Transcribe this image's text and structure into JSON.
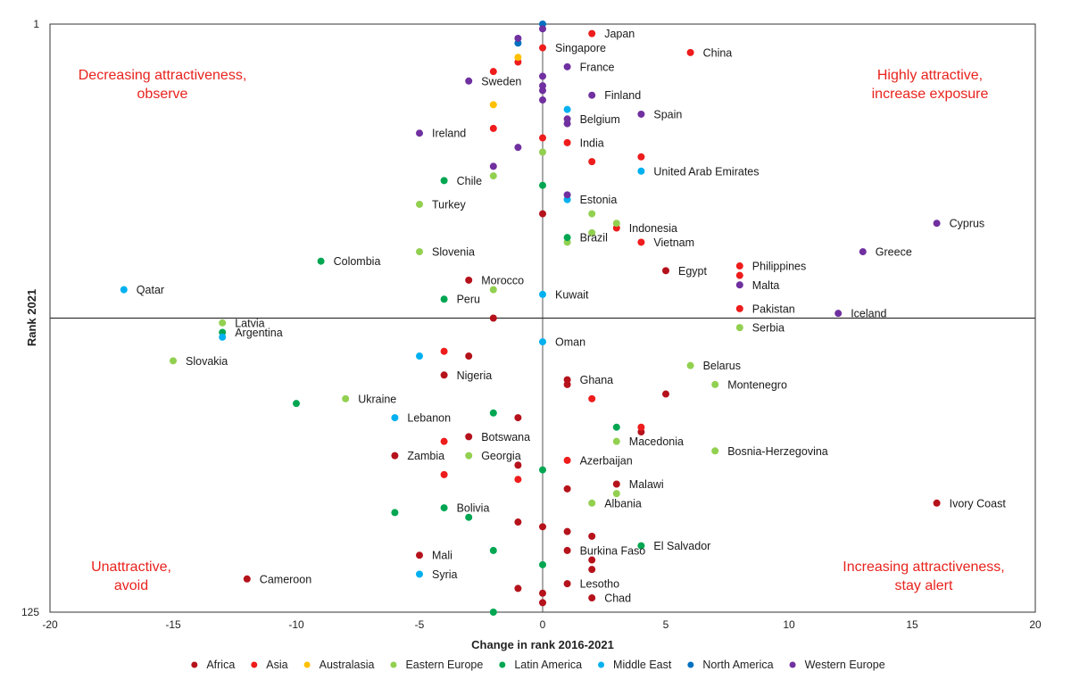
{
  "chart_data": {
    "type": "scatter",
    "xlabel": "Change in rank 2016-2021",
    "ylabel": "Rank 2021",
    "xlim": [
      -20,
      20
    ],
    "ylim": [
      1,
      125
    ],
    "y_reversed": true,
    "x_ticks": [
      -20,
      -15,
      -10,
      -5,
      0,
      5,
      10,
      15,
      20
    ],
    "y_ticks": [
      1,
      125
    ],
    "x_tick_labels": [
      "-20",
      "-15",
      "-10",
      "-5",
      "0",
      "5",
      "10",
      "15",
      "20"
    ],
    "y_tick_labels": [
      "1",
      "125"
    ],
    "reference_lines": {
      "x": 0,
      "y": 63
    },
    "grid": false,
    "legend_position": "bottom",
    "quadrant_labels": [
      {
        "lines": [
          "Decreasing attractiveness,",
          "observe"
        ],
        "position": "top-left"
      },
      {
        "lines": [
          "Highly attractive,",
          "increase exposure"
        ],
        "position": "top-right"
      },
      {
        "lines": [
          "Unattractive,",
          "avoid"
        ],
        "position": "bottom-left"
      },
      {
        "lines": [
          "Increasing attractiveness,",
          "stay alert"
        ],
        "position": "bottom-right"
      }
    ],
    "series": [
      {
        "name": "Africa",
        "color": "#b5121b",
        "points": [
          {
            "x": 0,
            "y": 41,
            "label": ""
          },
          {
            "x": -3,
            "y": 55,
            "label": "Morocco"
          },
          {
            "x": 5,
            "y": 53,
            "label": "Egypt"
          },
          {
            "x": -2,
            "y": 63,
            "label": ""
          },
          {
            "x": -3,
            "y": 71,
            "label": ""
          },
          {
            "x": -4,
            "y": 75,
            "label": "Nigeria"
          },
          {
            "x": 1,
            "y": 76,
            "label": "Ghana"
          },
          {
            "x": 1,
            "y": 77,
            "label": ""
          },
          {
            "x": 5,
            "y": 79,
            "label": ""
          },
          {
            "x": -1,
            "y": 84,
            "label": ""
          },
          {
            "x": 4,
            "y": 87,
            "label": ""
          },
          {
            "x": -3,
            "y": 88,
            "label": "Botswana"
          },
          {
            "x": -6,
            "y": 92,
            "label": "Zambia"
          },
          {
            "x": -1,
            "y": 94,
            "label": ""
          },
          {
            "x": 3,
            "y": 98,
            "label": "Malawi"
          },
          {
            "x": 1,
            "y": 99,
            "label": ""
          },
          {
            "x": 16,
            "y": 102,
            "label": "Ivory Coast"
          },
          {
            "x": -1,
            "y": 106,
            "label": ""
          },
          {
            "x": 0,
            "y": 107,
            "label": ""
          },
          {
            "x": 1,
            "y": 108,
            "label": ""
          },
          {
            "x": 2,
            "y": 109,
            "label": ""
          },
          {
            "x": 1,
            "y": 112,
            "label": "Burkina Faso"
          },
          {
            "x": -5,
            "y": 113,
            "label": "Mali"
          },
          {
            "x": 2,
            "y": 114,
            "label": ""
          },
          {
            "x": 2,
            "y": 116,
            "label": ""
          },
          {
            "x": -12,
            "y": 118,
            "label": "Cameroon"
          },
          {
            "x": 1,
            "y": 119,
            "label": "Lesotho"
          },
          {
            "x": -1,
            "y": 120,
            "label": ""
          },
          {
            "x": 0,
            "y": 121,
            "label": ""
          },
          {
            "x": 2,
            "y": 122,
            "label": "Chad"
          },
          {
            "x": 0,
            "y": 123,
            "label": ""
          }
        ]
      },
      {
        "name": "Asia",
        "color": "#ee1c1c",
        "points": [
          {
            "x": 2,
            "y": 3,
            "label": "Japan"
          },
          {
            "x": 0,
            "y": 6,
            "label": "Singapore"
          },
          {
            "x": 6,
            "y": 7,
            "label": "China"
          },
          {
            "x": -1,
            "y": 9,
            "label": ""
          },
          {
            "x": -2,
            "y": 11,
            "label": ""
          },
          {
            "x": -2,
            "y": 23,
            "label": ""
          },
          {
            "x": 0,
            "y": 25,
            "label": ""
          },
          {
            "x": 1,
            "y": 26,
            "label": "India"
          },
          {
            "x": 4,
            "y": 29,
            "label": ""
          },
          {
            "x": 2,
            "y": 30,
            "label": ""
          },
          {
            "x": 3,
            "y": 44,
            "label": "Indonesia"
          },
          {
            "x": 4,
            "y": 47,
            "label": "Vietnam"
          },
          {
            "x": 8,
            "y": 52,
            "label": "Philippines"
          },
          {
            "x": 8,
            "y": 54,
            "label": ""
          },
          {
            "x": 8,
            "y": 61,
            "label": "Pakistan"
          },
          {
            "x": -4,
            "y": 70,
            "label": ""
          },
          {
            "x": 2,
            "y": 80,
            "label": ""
          },
          {
            "x": 4,
            "y": 86,
            "label": ""
          },
          {
            "x": -4,
            "y": 89,
            "label": ""
          },
          {
            "x": 1,
            "y": 93,
            "label": "Azerbaijan"
          },
          {
            "x": -4,
            "y": 96,
            "label": ""
          },
          {
            "x": -1,
            "y": 97,
            "label": ""
          }
        ]
      },
      {
        "name": "Australasia",
        "color": "#ffc000",
        "points": [
          {
            "x": -1,
            "y": 8,
            "label": ""
          },
          {
            "x": -2,
            "y": 18,
            "label": ""
          }
        ]
      },
      {
        "name": "Eastern Europe",
        "color": "#92d050",
        "points": [
          {
            "x": 0,
            "y": 28,
            "label": ""
          },
          {
            "x": -2,
            "y": 33,
            "label": ""
          },
          {
            "x": 1,
            "y": 38,
            "label": "Estonia"
          },
          {
            "x": -5,
            "y": 39,
            "label": "Turkey"
          },
          {
            "x": 2,
            "y": 41,
            "label": ""
          },
          {
            "x": 3,
            "y": 43,
            "label": ""
          },
          {
            "x": 2,
            "y": 45,
            "label": ""
          },
          {
            "x": 1,
            "y": 47,
            "label": ""
          },
          {
            "x": -5,
            "y": 49,
            "label": "Slovenia"
          },
          {
            "x": -2,
            "y": 57,
            "label": ""
          },
          {
            "x": -13,
            "y": 64,
            "label": "Latvia"
          },
          {
            "x": 8,
            "y": 65,
            "label": "Serbia"
          },
          {
            "x": -15,
            "y": 72,
            "label": "Slovakia"
          },
          {
            "x": 6,
            "y": 73,
            "label": "Belarus"
          },
          {
            "x": 7,
            "y": 77,
            "label": "Montenegro"
          },
          {
            "x": -8,
            "y": 80,
            "label": "Ukraine"
          },
          {
            "x": 3,
            "y": 89,
            "label": "Macedonia"
          },
          {
            "x": 7,
            "y": 91,
            "label": "Bosnia-Herzegovina"
          },
          {
            "x": -3,
            "y": 92,
            "label": "Georgia"
          },
          {
            "x": 3,
            "y": 100,
            "label": ""
          },
          {
            "x": 2,
            "y": 102,
            "label": "Albania"
          }
        ]
      },
      {
        "name": "Latin America",
        "color": "#00a651",
        "points": [
          {
            "x": -4,
            "y": 34,
            "label": "Chile"
          },
          {
            "x": 0,
            "y": 35,
            "label": ""
          },
          {
            "x": 1,
            "y": 46,
            "label": "Brazil"
          },
          {
            "x": -9,
            "y": 51,
            "label": "Colombia"
          },
          {
            "x": -4,
            "y": 59,
            "label": "Peru"
          },
          {
            "x": -13,
            "y": 66,
            "label": "Argentina"
          },
          {
            "x": -10,
            "y": 81,
            "label": ""
          },
          {
            "x": -2,
            "y": 83,
            "label": ""
          },
          {
            "x": 3,
            "y": 86,
            "label": ""
          },
          {
            "x": 0,
            "y": 95,
            "label": ""
          },
          {
            "x": -4,
            "y": 103,
            "label": "Bolivia"
          },
          {
            "x": -6,
            "y": 104,
            "label": ""
          },
          {
            "x": -3,
            "y": 105,
            "label": ""
          },
          {
            "x": 4,
            "y": 111,
            "label": "El Salvador"
          },
          {
            "x": -2,
            "y": 112,
            "label": ""
          },
          {
            "x": 0,
            "y": 115,
            "label": ""
          },
          {
            "x": -2,
            "y": 125,
            "label": ""
          }
        ]
      },
      {
        "name": "Middle East",
        "color": "#00b0f0",
        "points": [
          {
            "x": 1,
            "y": 19,
            "label": ""
          },
          {
            "x": 4,
            "y": 32,
            "label": "United Arab Emirates"
          },
          {
            "x": 1,
            "y": 38,
            "label": ""
          },
          {
            "x": -17,
            "y": 57,
            "label": "Qatar"
          },
          {
            "x": 0,
            "y": 58,
            "label": "Kuwait"
          },
          {
            "x": -13,
            "y": 67,
            "label": ""
          },
          {
            "x": 0,
            "y": 68,
            "label": "Oman"
          },
          {
            "x": -5,
            "y": 71,
            "label": ""
          },
          {
            "x": -6,
            "y": 84,
            "label": "Lebanon"
          },
          {
            "x": -5,
            "y": 117,
            "label": "Syria"
          }
        ]
      },
      {
        "name": "North America",
        "color": "#0070c0",
        "points": [
          {
            "x": 0,
            "y": 1,
            "label": ""
          },
          {
            "x": -1,
            "y": 5,
            "label": ""
          }
        ]
      },
      {
        "name": "Western Europe",
        "color": "#7030a0",
        "points": [
          {
            "x": 0,
            "y": 2,
            "label": ""
          },
          {
            "x": -1,
            "y": 4,
            "label": ""
          },
          {
            "x": 1,
            "y": 10,
            "label": "France"
          },
          {
            "x": -3,
            "y": 13,
            "label": "Sweden"
          },
          {
            "x": 0,
            "y": 12,
            "label": ""
          },
          {
            "x": 0,
            "y": 14,
            "label": ""
          },
          {
            "x": 0,
            "y": 15,
            "label": ""
          },
          {
            "x": 2,
            "y": 16,
            "label": "Finland"
          },
          {
            "x": 0,
            "y": 17,
            "label": ""
          },
          {
            "x": 4,
            "y": 20,
            "label": "Spain"
          },
          {
            "x": 1,
            "y": 21,
            "label": "Belgium"
          },
          {
            "x": 1,
            "y": 22,
            "label": ""
          },
          {
            "x": -5,
            "y": 24,
            "label": "Ireland"
          },
          {
            "x": -1,
            "y": 27,
            "label": ""
          },
          {
            "x": -2,
            "y": 31,
            "label": ""
          },
          {
            "x": 1,
            "y": 37,
            "label": ""
          },
          {
            "x": 16,
            "y": 43,
            "label": "Cyprus"
          },
          {
            "x": 13,
            "y": 49,
            "label": "Greece"
          },
          {
            "x": 8,
            "y": 56,
            "label": "Malta"
          },
          {
            "x": 12,
            "y": 62,
            "label": "Iceland"
          }
        ]
      }
    ]
  }
}
